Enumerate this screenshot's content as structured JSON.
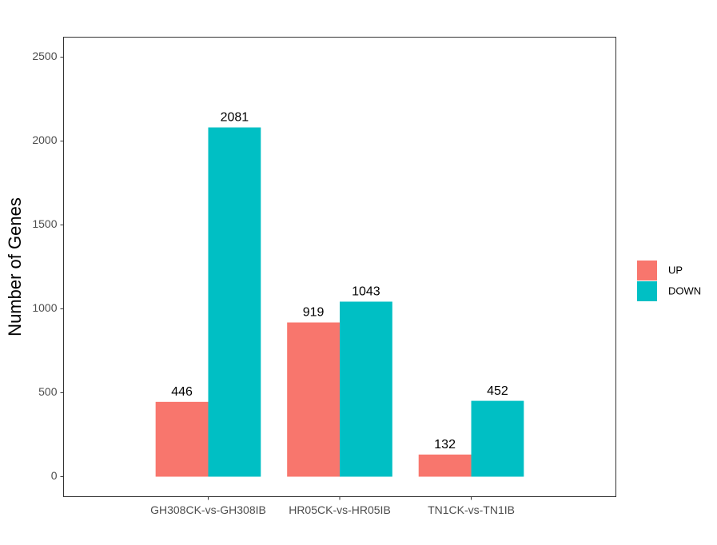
{
  "chart_data": {
    "type": "bar",
    "y_label": "Number of Genes",
    "categories": [
      "GH308CK-vs-GH308IB",
      "HR05CK-vs-HR05IB",
      "TN1CK-vs-TN1IB"
    ],
    "series": [
      {
        "name": "UP",
        "color": "#F8766D",
        "values": [
          446,
          919,
          132
        ]
      },
      {
        "name": "DOWN",
        "color": "#00BFC4",
        "values": [
          2081,
          1043,
          452
        ]
      }
    ],
    "ylim": [
      -119,
      2619
    ],
    "yticks": [
      0,
      500,
      1000,
      1500,
      2000,
      2500
    ],
    "grid": false,
    "legend": "right"
  }
}
